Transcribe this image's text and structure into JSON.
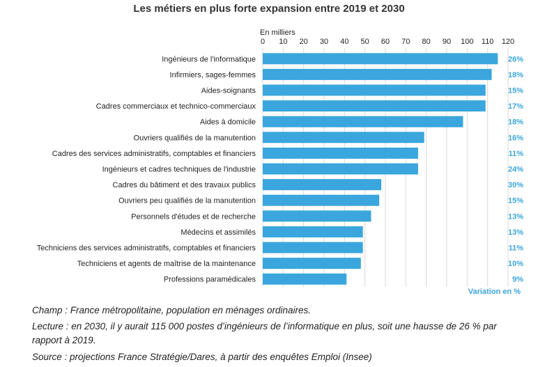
{
  "chart_data": {
    "type": "bar",
    "orientation": "horizontal",
    "title": "Les métiers en plus forte expansion entre 2019 et 2030",
    "unit_label": "En milliers",
    "xlim": [
      0,
      120
    ],
    "ticks": [
      0,
      10,
      20,
      30,
      40,
      50,
      60,
      70,
      80,
      90,
      100,
      110,
      120
    ],
    "grid": true,
    "bar_color": "#3aa6dd",
    "variation_color": "#3aa6dd",
    "variation_label": "Variation en %",
    "categories": [
      "Ingénieurs de l'informatique",
      "Infirmiers, sages-femmes",
      "Aides-soignants",
      "Cadres commerciaux et technico-commerciaux",
      "Aides à domicile",
      "Ouvriers qualifiés de la manutention",
      "Cadres des services administratifs, comptables et financiers",
      "Ingénieurs et cadres techniques de l'industrie",
      "Cadres du bâtiment et des travaux publics",
      "Ouvriers peu qualifiés de la manutention",
      "Personnels d'études et de recherche",
      "Médecins et assimilés",
      "Techniciens des services administratifs, comptables et financiers",
      "Techniciens et agents de maîtrise de la maintenance",
      "Professions paramédicales"
    ],
    "values": [
      115,
      112,
      109,
      109,
      98,
      79,
      76,
      76,
      58,
      57,
      53,
      49,
      49,
      48,
      41
    ],
    "variations": [
      "26%",
      "18%",
      "15%",
      "17%",
      "18%",
      "16%",
      "11%",
      "24%",
      "30%",
      "15%",
      "13%",
      "13%",
      "11%",
      "10%",
      "9%"
    ]
  },
  "notes": {
    "champ": "Champ : France métropolitaine, population en ménages ordinaires.",
    "lecture": "Lecture : en 2030, il y aurait 115 000 postes d’ingénieurs de l’informatique en plus, soit une hausse de 26 % par rapport à 2019.",
    "source": "Source : projections France Stratégie/Dares, à partir des enquêtes Emploi (Insee)"
  }
}
